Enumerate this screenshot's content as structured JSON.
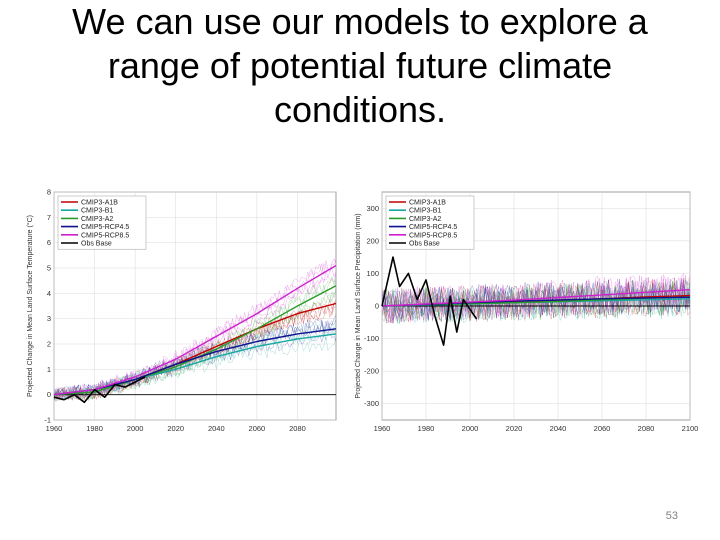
{
  "slide": {
    "title_lines": [
      "We can use our models to explore a",
      "range of potential future climate",
      "conditions."
    ],
    "page_number": "53"
  },
  "colors": {
    "CMIP3-A1B": "#c00000",
    "CMIP3-B1": "#19a8a0",
    "CMIP3-A2": "#2a9a2a",
    "CMIP5-RCP4.5": "#101090",
    "CMIP5-RCP8.5": "#cc22cc",
    "Obs Base": "#000000",
    "grid": "#d8d8d8"
  },
  "chart_data": [
    {
      "type": "line",
      "ylabel": "Projected Change in Mean Land Surface Temperature (°C)",
      "xlabel": "",
      "xlim": [
        1960,
        2099
      ],
      "ylim": [
        -1,
        8
      ],
      "xticks": [
        1960,
        1980,
        2000,
        2020,
        2040,
        2060,
        2080
      ],
      "yticks": [
        -1,
        0,
        1,
        2,
        3,
        4,
        5,
        6,
        7,
        8
      ],
      "grid": true,
      "legend_position": "top-left",
      "legend": [
        "CMIP3-A1B",
        "CMIP3-B1",
        "CMIP3-A2",
        "CMIP5-RCP4.5",
        "CMIP5-RCP8.5",
        "Obs Base"
      ],
      "reference_line_y": 0,
      "series": [
        {
          "name": "CMIP3-A1B",
          "x": [
            1960,
            1980,
            2000,
            2020,
            2040,
            2060,
            2080,
            2099
          ],
          "values": [
            0,
            0.1,
            0.6,
            1.2,
            1.9,
            2.6,
            3.2,
            3.6
          ]
        },
        {
          "name": "CMIP3-B1",
          "x": [
            1960,
            1980,
            2000,
            2020,
            2040,
            2060,
            2080,
            2099
          ],
          "values": [
            0,
            0.1,
            0.6,
            1.0,
            1.5,
            1.9,
            2.2,
            2.4
          ]
        },
        {
          "name": "CMIP3-A2",
          "x": [
            1960,
            1980,
            2000,
            2020,
            2040,
            2060,
            2080,
            2099
          ],
          "values": [
            0,
            0.1,
            0.6,
            1.1,
            1.8,
            2.6,
            3.5,
            4.3
          ]
        },
        {
          "name": "CMIP5-RCP4.5",
          "x": [
            1960,
            1980,
            2000,
            2020,
            2040,
            2060,
            2080,
            2099
          ],
          "values": [
            0,
            0.2,
            0.6,
            1.2,
            1.7,
            2.1,
            2.4,
            2.6
          ]
        },
        {
          "name": "CMIP5-RCP8.5",
          "x": [
            1960,
            1980,
            2000,
            2020,
            2040,
            2060,
            2080,
            2099
          ],
          "values": [
            0,
            0.2,
            0.7,
            1.4,
            2.3,
            3.2,
            4.2,
            5.1
          ]
        },
        {
          "name": "Obs Base",
          "x": [
            1960,
            1965,
            1970,
            1975,
            1980,
            1985,
            1990,
            1995,
            2000,
            2005
          ],
          "values": [
            -0.1,
            -0.2,
            0.0,
            -0.3,
            0.2,
            -0.1,
            0.4,
            0.3,
            0.5,
            0.7
          ]
        }
      ]
    },
    {
      "type": "line",
      "ylabel": "Projected Change in Mean Land Surface Precipitation (mm)",
      "xlabel": "",
      "xlim": [
        1960,
        2100
      ],
      "ylim": [
        -350,
        350
      ],
      "xticks": [
        1960,
        1980,
        2000,
        2020,
        2040,
        2060,
        2080,
        2100
      ],
      "yticks": [
        -300,
        -200,
        -100,
        0,
        100,
        200,
        300
      ],
      "grid": true,
      "legend_position": "top-left",
      "legend": [
        "CMIP3-A1B",
        "CMIP3-B1",
        "CMIP3-A2",
        "CMIP5-RCP4.5",
        "CMIP5-RCP8.5",
        "Obs Base"
      ],
      "reference_line_y": 0,
      "series": [
        {
          "name": "CMIP3-A1B",
          "x": [
            1960,
            1980,
            2000,
            2020,
            2040,
            2060,
            2080,
            2100
          ],
          "values": [
            0,
            5,
            8,
            12,
            18,
            22,
            28,
            32
          ]
        },
        {
          "name": "CMIP3-B1",
          "x": [
            1960,
            1980,
            2000,
            2020,
            2040,
            2060,
            2080,
            2100
          ],
          "values": [
            0,
            3,
            6,
            10,
            13,
            16,
            19,
            22
          ]
        },
        {
          "name": "CMIP3-A2",
          "x": [
            1960,
            1980,
            2000,
            2020,
            2040,
            2060,
            2080,
            2100
          ],
          "values": [
            0,
            4,
            7,
            10,
            14,
            19,
            24,
            28
          ]
        },
        {
          "name": "CMIP5-RCP4.5",
          "x": [
            1960,
            1980,
            2000,
            2020,
            2040,
            2060,
            2080,
            2100
          ],
          "values": [
            0,
            5,
            10,
            15,
            18,
            22,
            25,
            27
          ]
        },
        {
          "name": "CMIP5-RCP8.5",
          "x": [
            1960,
            1980,
            2000,
            2020,
            2040,
            2060,
            2080,
            2100
          ],
          "values": [
            0,
            6,
            12,
            18,
            26,
            34,
            42,
            50
          ]
        },
        {
          "name": "Obs Base",
          "x": [
            1960,
            1965,
            1968,
            1972,
            1976,
            1980,
            1984,
            1988,
            1991,
            1994,
            1997,
            2000,
            2003
          ],
          "values": [
            0,
            150,
            60,
            100,
            20,
            80,
            -30,
            -120,
            30,
            -80,
            20,
            -10,
            -40
          ]
        }
      ]
    }
  ]
}
